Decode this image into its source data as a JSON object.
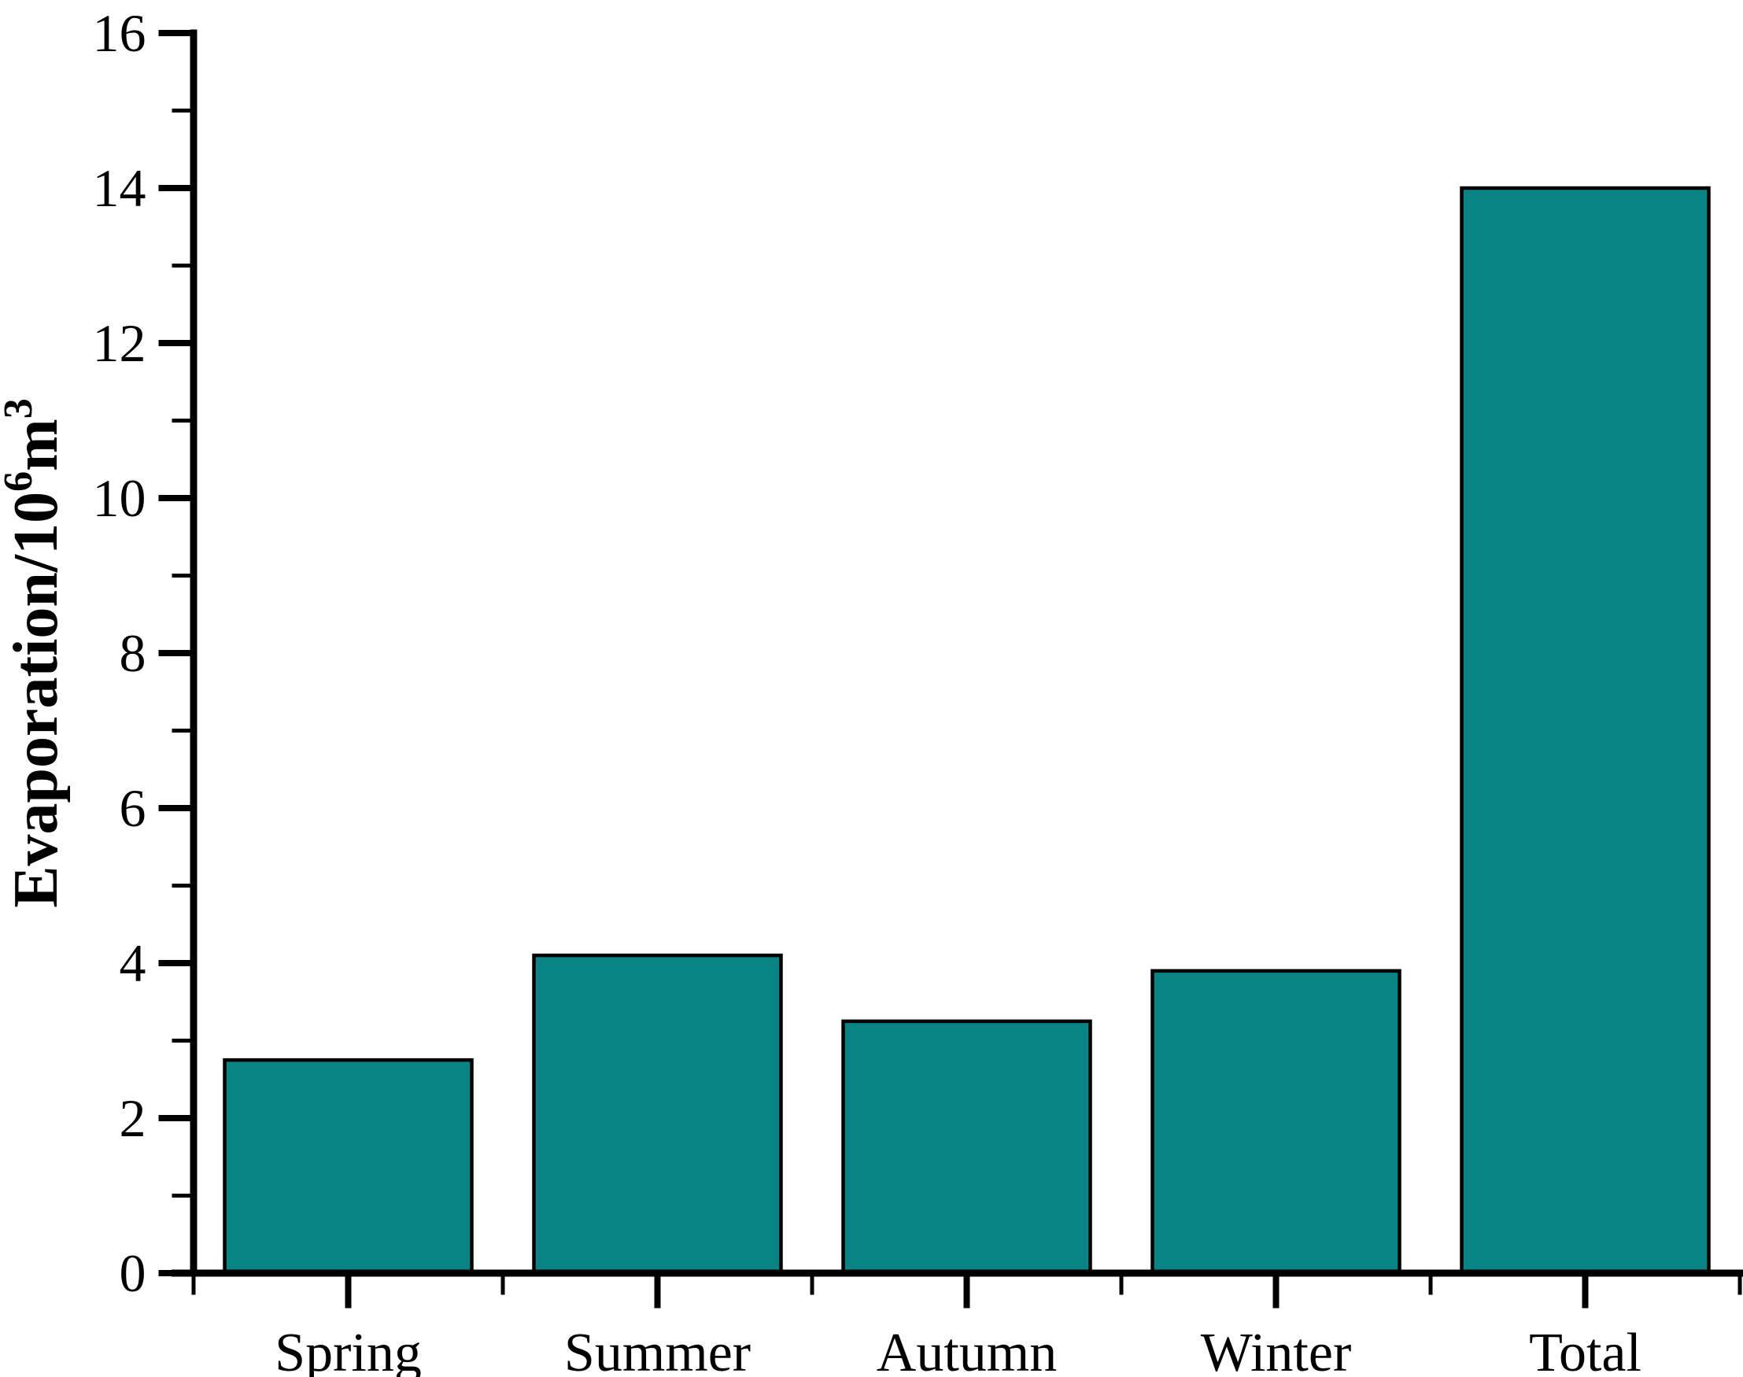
{
  "chart_data": {
    "type": "bar",
    "title": "",
    "categories": [
      "Spring",
      "Summer",
      "Autumn",
      "Winter",
      "Total"
    ],
    "values": [
      2.75,
      4.1,
      3.25,
      3.9,
      14.0
    ],
    "series": [
      {
        "name": "Evaporation",
        "values": [
          2.75,
          4.1,
          3.25,
          3.9,
          14.0
        ]
      }
    ],
    "xlabel": "",
    "ylabel": {
      "prefix": "Evaporation/10",
      "sup1": "6",
      "mid": "m",
      "sup2": "3",
      "plain_text": "Evaporation/10^6 m^3"
    },
    "ylim": [
      0,
      16
    ],
    "y_major_tick_step": 2,
    "y_minor_tick_step": 1,
    "y_tick_labels": [
      "0",
      "2",
      "4",
      "6",
      "8",
      "10",
      "12",
      "14",
      "16"
    ],
    "grid": false,
    "legend": "none",
    "bar_fill_color": "#098384",
    "bar_stroke_color": "#000000",
    "axis_color": "#000000",
    "text_color": "#000000",
    "background_color": "#ffffff"
  }
}
